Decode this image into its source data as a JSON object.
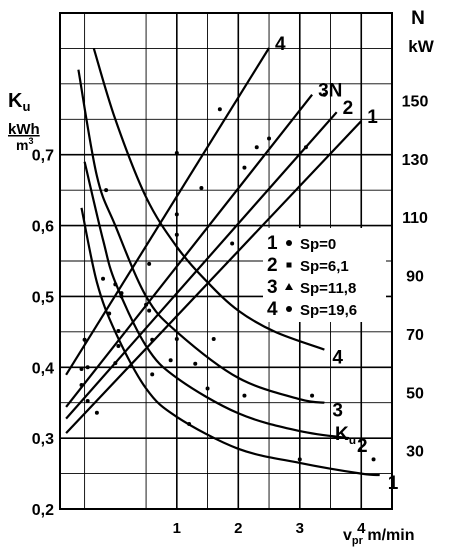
{
  "chart_data": {
    "type": "line",
    "x_axis": {
      "label_main": "v",
      "label_sub": "pr",
      "unit": "m/min",
      "ticks": [
        1,
        2,
        3,
        4
      ],
      "range": [
        -0.9,
        4.5
      ]
    },
    "left_axis": {
      "symbol_main": "K",
      "symbol_sub": "u",
      "unit_num": "kWh",
      "unit_den_base": "m",
      "unit_den_exp": "3",
      "ticks": [
        "0,2",
        "0,3",
        "0,4",
        "0,5",
        "0,6",
        "0,7"
      ],
      "tick_values": [
        0.2,
        0.3,
        0.4,
        0.5,
        0.6,
        0.7
      ],
      "range": [
        0.2,
        0.9
      ]
    },
    "right_axis": {
      "symbol": "N",
      "unit": "kW",
      "ticks": [
        "30",
        "50",
        "70",
        "90",
        "110",
        "130",
        "150"
      ],
      "tick_values": [
        30,
        50,
        70,
        90,
        110,
        130,
        150
      ],
      "range": [
        10,
        180
      ]
    },
    "grid": true,
    "legend": {
      "placement": "right",
      "entries": [
        {
          "num": "1",
          "marker": "circle",
          "text": "Sp=0"
        },
        {
          "num": "2",
          "marker": "square",
          "text": "Sp=6,1"
        },
        {
          "num": "3",
          "marker": "triangle",
          "text": "Sp=11,8"
        },
        {
          "num": "4",
          "marker": "circle",
          "text": "Sp=19,6"
        }
      ]
    },
    "power_series": [
      {
        "label": "1",
        "x": [
          -0.8,
          4.0
        ],
        "y": [
          36,
          143
        ]
      },
      {
        "label": "2",
        "x": [
          -0.8,
          3.6
        ],
        "y": [
          41,
          146
        ]
      },
      {
        "label": "3N",
        "x": [
          -0.8,
          3.2
        ],
        "y": [
          45,
          152
        ]
      },
      {
        "label": "4",
        "x": [
          -0.8,
          2.5
        ],
        "y": [
          56,
          168
        ]
      }
    ],
    "ku_series": [
      {
        "label": "1",
        "x": [
          -0.55,
          -0.3,
          0,
          0.5,
          1.0,
          2.0,
          3.0,
          4.0,
          4.3
        ],
        "y": [
          0.625,
          0.52,
          0.45,
          0.37,
          0.33,
          0.285,
          0.265,
          0.25,
          0.248
        ]
      },
      {
        "label": "2",
        "x": [
          -0.5,
          -0.2,
          0,
          0.5,
          1.0,
          2.0,
          3.0,
          3.8
        ],
        "y": [
          0.69,
          0.58,
          0.52,
          0.43,
          0.385,
          0.335,
          0.31,
          0.3
        ]
      },
      {
        "label": "3",
        "x": [
          -0.6,
          -0.3,
          0,
          0.5,
          1.0,
          2.0,
          3.0,
          3.4
        ],
        "y": [
          0.82,
          0.67,
          0.6,
          0.5,
          0.45,
          0.385,
          0.355,
          0.35
        ]
      },
      {
        "label": "4",
        "x": [
          -0.35,
          0,
          0.5,
          1.0,
          1.5,
          2.0,
          2.6,
          3.4
        ],
        "y": [
          0.85,
          0.75,
          0.64,
          0.57,
          0.52,
          0.48,
          0.45,
          0.425
        ]
      }
    ],
    "ku_label": {
      "main": "K",
      "sub": "u"
    },
    "power_points": [
      {
        "x": -0.55,
        "y": 58
      },
      {
        "x": -0.5,
        "y": 68
      },
      {
        "x": -0.45,
        "y": 47
      },
      {
        "x": -0.3,
        "y": 43
      },
      {
        "x": -0.1,
        "y": 77
      },
      {
        "x": 0,
        "y": 87
      },
      {
        "x": 0,
        "y": 60
      },
      {
        "x": 0.05,
        "y": 71
      },
      {
        "x": 0.1,
        "y": 84
      },
      {
        "x": 0.5,
        "y": 80
      },
      {
        "x": 0.55,
        "y": 94
      },
      {
        "x": 0.6,
        "y": 68
      },
      {
        "x": 1.0,
        "y": 111
      },
      {
        "x": 1.0,
        "y": 132
      },
      {
        "x": 1.0,
        "y": 104
      },
      {
        "x": 1.4,
        "y": 120
      },
      {
        "x": 1.7,
        "y": 147
      },
      {
        "x": 1.9,
        "y": 101
      },
      {
        "x": 2.1,
        "y": 127
      },
      {
        "x": 2.3,
        "y": 134
      },
      {
        "x": 2.5,
        "y": 137
      },
      {
        "x": 3.1,
        "y": 134
      },
      {
        "x": 3.4,
        "y": 152
      }
    ],
    "ku_points": [
      {
        "x": -0.55,
        "y": 0.375
      },
      {
        "x": -0.45,
        "y": 0.4
      },
      {
        "x": -0.2,
        "y": 0.525
      },
      {
        "x": -0.15,
        "y": 0.65
      },
      {
        "x": 0.05,
        "y": 0.43
      },
      {
        "x": 0.1,
        "y": 0.5
      },
      {
        "x": 0.55,
        "y": 0.48
      },
      {
        "x": 0.6,
        "y": 0.39
      },
      {
        "x": 0.9,
        "y": 0.41
      },
      {
        "x": 1.0,
        "y": 0.44
      },
      {
        "x": 1.2,
        "y": 0.32
      },
      {
        "x": 1.3,
        "y": 0.405
      },
      {
        "x": 1.5,
        "y": 0.37
      },
      {
        "x": 1.6,
        "y": 0.44
      },
      {
        "x": 2.1,
        "y": 0.36
      },
      {
        "x": 3.0,
        "y": 0.27
      },
      {
        "x": 3.2,
        "y": 0.36
      },
      {
        "x": 4.2,
        "y": 0.27
      }
    ]
  }
}
